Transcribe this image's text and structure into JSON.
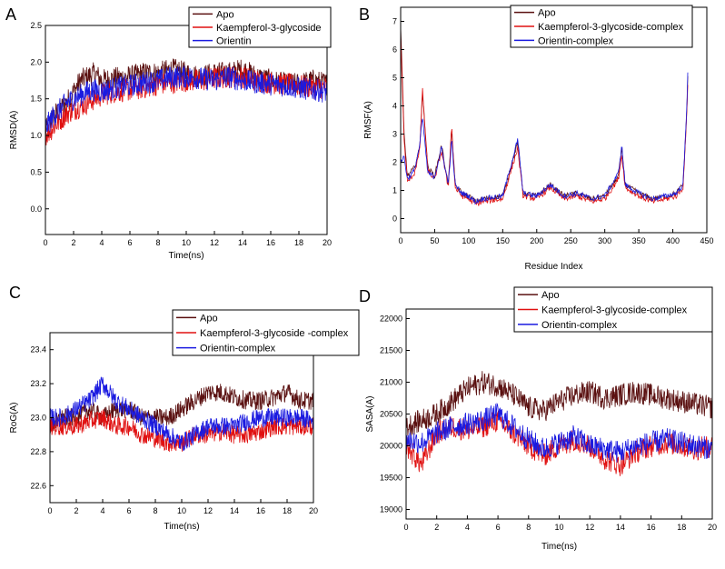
{
  "chart_data": [
    {
      "type": "line",
      "panel": "A",
      "xlabel": "Time(ns)",
      "ylabel": "RMSD(A)",
      "xlim": [
        0,
        20
      ],
      "ylim": [
        -0.35,
        2.5
      ],
      "xticks": [
        "0",
        "2",
        "4",
        "6",
        "8",
        "10",
        "12",
        "14",
        "16",
        "18",
        "20"
      ],
      "yticks": [
        "0.0",
        "0.5",
        "1.0",
        "1.5",
        "2.0",
        "2.5"
      ],
      "legend": [
        "Apo",
        "Kaempferol-3-glycoside",
        "Orientin"
      ],
      "series": [
        {
          "name": "Apo",
          "color": "#5a1010",
          "x": [
            0,
            0.5,
            1,
            1.5,
            2,
            2.5,
            3,
            3.5,
            4,
            5,
            6,
            7,
            8,
            9,
            10,
            11,
            12,
            13,
            14,
            15,
            16,
            17,
            18,
            19,
            20
          ],
          "y": [
            1.05,
            1.25,
            1.35,
            1.45,
            1.6,
            1.75,
            1.8,
            1.85,
            1.75,
            1.78,
            1.8,
            1.85,
            1.85,
            1.9,
            1.85,
            1.8,
            1.85,
            1.85,
            1.9,
            1.8,
            1.75,
            1.7,
            1.7,
            1.75,
            1.7
          ]
        },
        {
          "name": "Kaempferol-3-glycoside",
          "color": "#e01010",
          "x": [
            0,
            0.5,
            1,
            1.5,
            2,
            2.5,
            3,
            3.5,
            4,
            5,
            6,
            7,
            8,
            9,
            10,
            11,
            12,
            13,
            14,
            15,
            16,
            17,
            18,
            19,
            20
          ],
          "y": [
            1.0,
            1.1,
            1.2,
            1.3,
            1.35,
            1.4,
            1.45,
            1.5,
            1.55,
            1.6,
            1.62,
            1.65,
            1.7,
            1.72,
            1.75,
            1.75,
            1.78,
            1.8,
            1.8,
            1.75,
            1.72,
            1.7,
            1.68,
            1.65,
            1.65
          ]
        },
        {
          "name": "Orientin",
          "color": "#1a1ae0",
          "x": [
            0,
            0.5,
            1,
            1.5,
            2,
            2.5,
            3,
            3.5,
            4,
            5,
            6,
            7,
            8,
            9,
            10,
            11,
            12,
            13,
            14,
            15,
            16,
            17,
            18,
            19,
            20
          ],
          "y": [
            1.1,
            1.25,
            1.35,
            1.45,
            1.5,
            1.55,
            1.6,
            1.62,
            1.6,
            1.65,
            1.68,
            1.72,
            1.75,
            1.8,
            1.8,
            1.78,
            1.75,
            1.8,
            1.75,
            1.72,
            1.7,
            1.68,
            1.65,
            1.62,
            1.6
          ]
        }
      ]
    },
    {
      "type": "line",
      "panel": "B",
      "xlabel": "Residue Index",
      "ylabel": "RMSF(A)",
      "xlim": [
        0,
        450
      ],
      "ylim": [
        -0.5,
        7.5
      ],
      "xticks": [
        "0",
        "50",
        "100",
        "150",
        "200",
        "250",
        "300",
        "350",
        "400",
        "450"
      ],
      "yticks": [
        "0",
        "1",
        "2",
        "3",
        "4",
        "5",
        "6",
        "7"
      ],
      "legend": [
        "Apo",
        "Kaempferol-3-glycoside-complex",
        "Orientin-complex"
      ],
      "series": [
        {
          "name": "Apo",
          "color": "#5a1010",
          "x": [
            0,
            5,
            10,
            20,
            28,
            32,
            40,
            50,
            60,
            70,
            75,
            80,
            90,
            100,
            110,
            120,
            150,
            172,
            180,
            200,
            220,
            240,
            260,
            280,
            300,
            320,
            325,
            330,
            350,
            370,
            390,
            405,
            415,
            420,
            422
          ],
          "y": [
            6.8,
            3.0,
            1.5,
            1.8,
            2.5,
            4.5,
            1.8,
            1.5,
            2.6,
            1.2,
            3.2,
            1.2,
            0.9,
            0.8,
            0.6,
            0.7,
            0.8,
            2.7,
            0.9,
            0.8,
            1.2,
            0.8,
            0.9,
            0.7,
            0.8,
            1.5,
            2.5,
            1.2,
            0.9,
            0.7,
            0.8,
            0.9,
            1.2,
            3.5,
            5.0
          ]
        },
        {
          "name": "Kaempferol-3-glycoside-complex",
          "color": "#e01010",
          "x": [
            0,
            5,
            10,
            20,
            28,
            32,
            40,
            50,
            60,
            70,
            75,
            80,
            90,
            100,
            110,
            120,
            150,
            172,
            180,
            200,
            220,
            240,
            260,
            280,
            300,
            320,
            325,
            330,
            350,
            370,
            390,
            405,
            415,
            420,
            422
          ],
          "y": [
            6.5,
            2.8,
            1.3,
            1.6,
            2.4,
            4.6,
            1.7,
            1.4,
            2.4,
            1.1,
            3.3,
            1.1,
            0.8,
            0.7,
            0.5,
            0.6,
            0.7,
            2.5,
            0.8,
            0.7,
            1.1,
            0.7,
            0.8,
            0.6,
            0.7,
            1.4,
            2.3,
            1.1,
            0.8,
            0.6,
            0.7,
            0.8,
            1.1,
            3.4,
            4.8
          ]
        },
        {
          "name": "Orientin-complex",
          "color": "#1a1ae0",
          "x": [
            0,
            5,
            10,
            20,
            28,
            32,
            40,
            50,
            60,
            70,
            75,
            80,
            90,
            100,
            110,
            120,
            150,
            172,
            180,
            200,
            220,
            240,
            260,
            280,
            300,
            320,
            325,
            330,
            350,
            370,
            390,
            405,
            415,
            420,
            422
          ],
          "y": [
            2.0,
            2.2,
            1.4,
            1.7,
            2.6,
            3.6,
            1.6,
            1.5,
            2.5,
            1.2,
            2.8,
            1.2,
            0.9,
            0.8,
            0.6,
            0.7,
            0.8,
            2.8,
            0.9,
            0.8,
            1.2,
            0.8,
            0.9,
            0.7,
            0.8,
            1.6,
            2.6,
            1.2,
            0.9,
            0.7,
            0.8,
            0.9,
            1.2,
            3.6,
            5.2
          ]
        }
      ]
    },
    {
      "type": "line",
      "panel": "C",
      "xlabel": "Time(ns)",
      "ylabel": "RoG(A)",
      "xlim": [
        0,
        20
      ],
      "ylim": [
        22.5,
        23.5
      ],
      "xticks": [
        "0",
        "2",
        "4",
        "6",
        "8",
        "10",
        "12",
        "14",
        "16",
        "18",
        "20"
      ],
      "yticks": [
        "22.6",
        "22.8",
        "23.0",
        "23.2",
        "23.4"
      ],
      "legend": [
        "Apo",
        "Kaempferol-3-glycoside -complex",
        "Orientin-complex"
      ],
      "series": [
        {
          "name": "Apo",
          "color": "#5a1010",
          "x": [
            0,
            1,
            2,
            3,
            4,
            5,
            6,
            7,
            8,
            9,
            10,
            11,
            12,
            13,
            14,
            15,
            16,
            17,
            18,
            19,
            20
          ],
          "y": [
            22.95,
            23.0,
            23.0,
            23.05,
            23.0,
            23.05,
            23.05,
            23.0,
            23.0,
            23.0,
            23.05,
            23.1,
            23.15,
            23.15,
            23.12,
            23.1,
            23.1,
            23.12,
            23.15,
            23.1,
            23.1
          ]
        },
        {
          "name": "Kaempferol-3-glycoside -complex",
          "color": "#e01010",
          "x": [
            0,
            1,
            2,
            3,
            4,
            5,
            6,
            7,
            8,
            9,
            10,
            11,
            12,
            13,
            14,
            15,
            16,
            17,
            18,
            19,
            20
          ],
          "y": [
            22.95,
            22.95,
            22.95,
            22.98,
            23.0,
            22.95,
            22.95,
            22.9,
            22.88,
            22.85,
            22.85,
            22.9,
            22.9,
            22.92,
            22.9,
            22.9,
            22.92,
            22.95,
            22.95,
            22.95,
            22.95
          ]
        },
        {
          "name": "Orientin-complex",
          "color": "#1a1ae0",
          "x": [
            0,
            1,
            2,
            3,
            4,
            5,
            6,
            7,
            8,
            9,
            10,
            11,
            12,
            13,
            14,
            15,
            16,
            17,
            18,
            19,
            20
          ],
          "y": [
            23.0,
            23.0,
            23.05,
            23.1,
            23.2,
            23.1,
            23.05,
            23.0,
            22.95,
            22.9,
            22.85,
            22.9,
            22.95,
            22.95,
            22.95,
            22.98,
            23.0,
            23.0,
            23.0,
            23.0,
            22.98
          ]
        }
      ]
    },
    {
      "type": "line",
      "panel": "D",
      "xlabel": "Time(ns)",
      "ylabel": "SASA(A)",
      "xlim": [
        0,
        20
      ],
      "ylim": [
        18850,
        22150
      ],
      "xticks": [
        "0",
        "2",
        "4",
        "6",
        "8",
        "10",
        "12",
        "14",
        "16",
        "18",
        "20"
      ],
      "yticks": [
        "19000",
        "19500",
        "20000",
        "20500",
        "21000",
        "21500",
        "22000"
      ],
      "legend": [
        "Apo",
        "Kaempferol-3-glycoside-complex",
        "Orientin-complex"
      ],
      "series": [
        {
          "name": "Apo",
          "color": "#5a1010",
          "x": [
            0,
            1,
            2,
            3,
            4,
            5,
            6,
            7,
            8,
            9,
            10,
            11,
            12,
            13,
            14,
            15,
            16,
            17,
            18,
            19,
            20
          ],
          "y": [
            20300,
            20400,
            20500,
            20700,
            20900,
            21000,
            20950,
            20800,
            20600,
            20550,
            20700,
            20800,
            20850,
            20750,
            20800,
            20850,
            20800,
            20750,
            20700,
            20650,
            20600
          ]
        },
        {
          "name": "Kaempferol-3-glycoside-complex",
          "color": "#e01010",
          "x": [
            0,
            1,
            2,
            3,
            4,
            5,
            6,
            7,
            8,
            9,
            10,
            11,
            12,
            13,
            14,
            15,
            16,
            17,
            18,
            19,
            20
          ],
          "y": [
            20000,
            19700,
            20200,
            20300,
            20250,
            20300,
            20400,
            20200,
            20000,
            19850,
            20000,
            20100,
            20000,
            19800,
            19700,
            19900,
            20000,
            20050,
            20000,
            19950,
            20000
          ]
        },
        {
          "name": "Orientin-complex",
          "color": "#1a1ae0",
          "x": [
            0,
            1,
            2,
            3,
            4,
            5,
            6,
            7,
            8,
            9,
            10,
            11,
            12,
            13,
            14,
            15,
            16,
            17,
            18,
            19,
            20
          ],
          "y": [
            20100,
            20050,
            20200,
            20300,
            20350,
            20400,
            20500,
            20300,
            20100,
            19950,
            20050,
            20150,
            20000,
            19950,
            19900,
            20000,
            20050,
            20100,
            20050,
            20000,
            19950
          ]
        }
      ]
    }
  ]
}
